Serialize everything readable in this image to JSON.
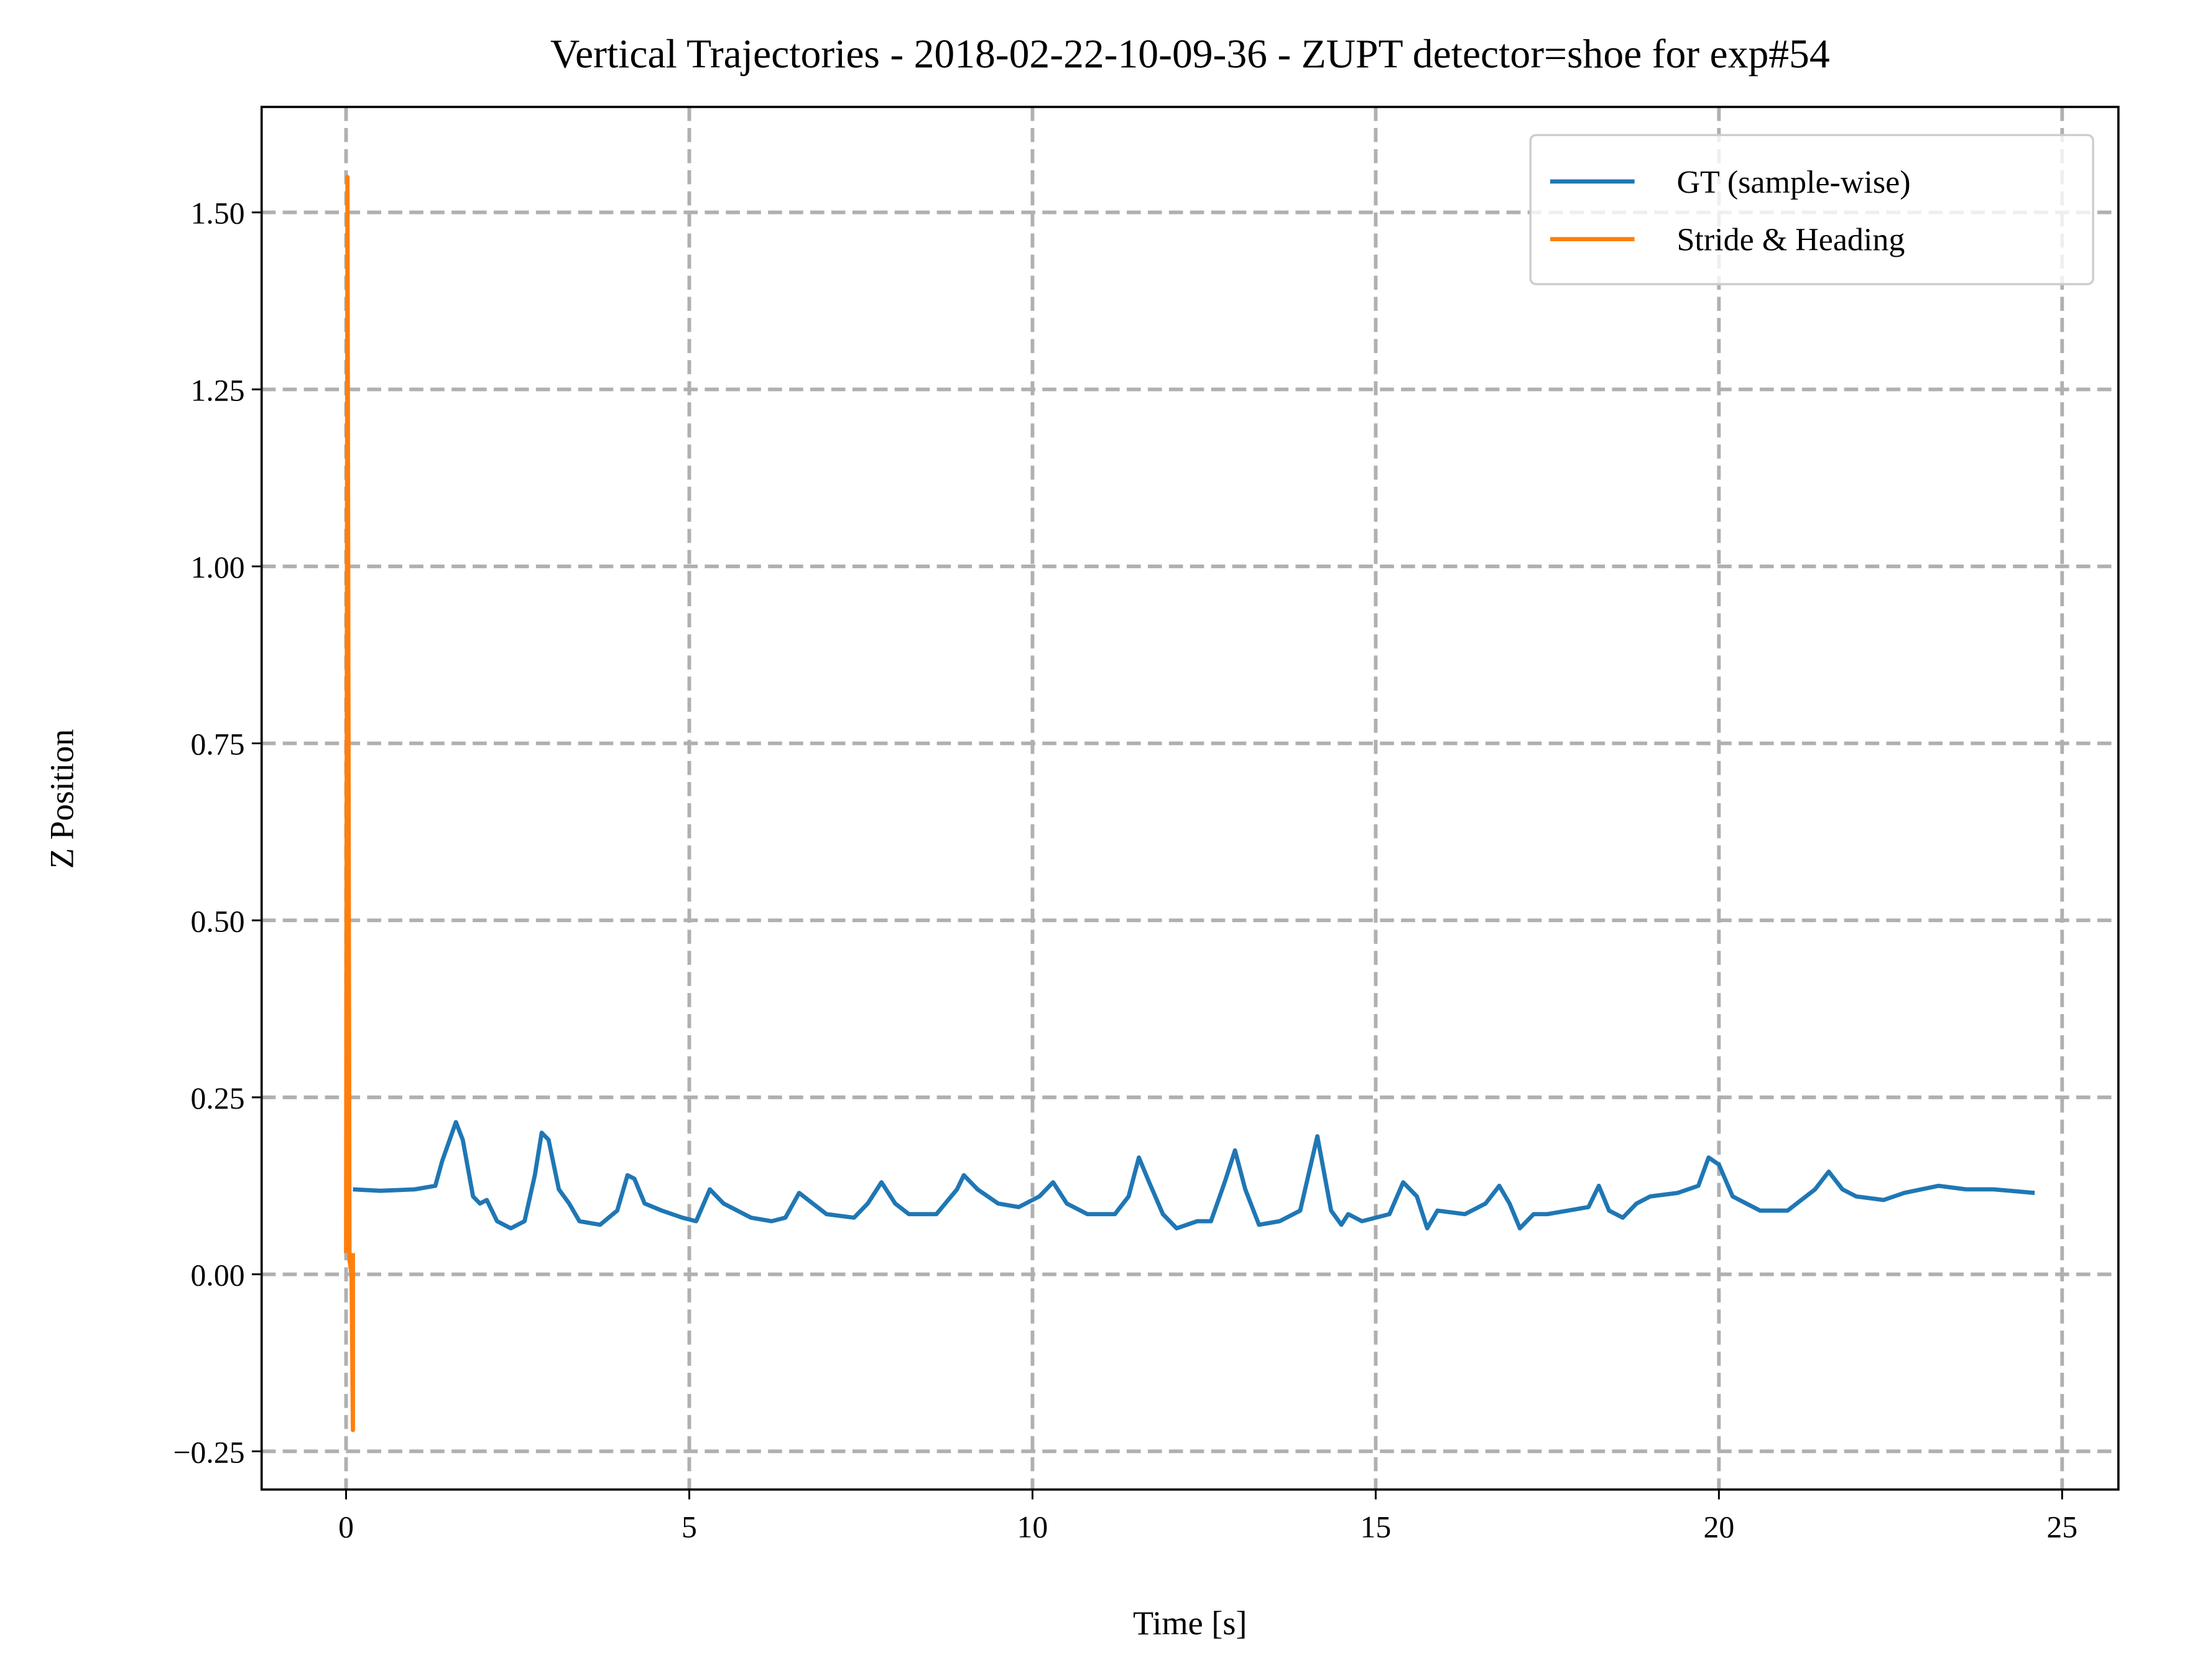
{
  "chart_data": {
    "type": "line",
    "title": "Vertical Trajectories - 2018-02-22-10-09-36 - ZUPT detector=shoe for exp#54",
    "x_label": "Time [s]",
    "y_label": "Z Position",
    "xlim": [
      -1.23,
      25.82
    ],
    "ylim": [
      -0.304,
      1.649
    ],
    "xticks": [
      0,
      5,
      10,
      15,
      20,
      25
    ],
    "yticks": [
      {
        "value": -0.25,
        "label": "−0.25"
      },
      {
        "value": 0,
        "label": "0.00"
      },
      0.25,
      {
        "value": 0.5,
        "label": "0.50"
      },
      0.75,
      {
        "value": 1,
        "label": "1.00"
      },
      1.25,
      {
        "value": 1.5,
        "label": "1.50"
      }
    ],
    "grid": true,
    "legend": "upper right",
    "series": [
      {
        "name": "GT (sample-wise)",
        "color": "#1f77b4",
        "x": [
          0.1,
          0.5,
          1.0,
          1.3,
          1.4,
          1.6,
          1.7,
          1.85,
          1.95,
          2.05,
          2.2,
          2.4,
          2.6,
          2.75,
          2.85,
          2.95,
          3.1,
          3.25,
          3.4,
          3.7,
          3.95,
          4.1,
          4.2,
          4.35,
          4.6,
          4.9,
          5.1,
          5.3,
          5.5,
          5.7,
          5.9,
          6.2,
          6.4,
          6.6,
          6.8,
          7.0,
          7.4,
          7.6,
          7.8,
          8.0,
          8.2,
          8.6,
          8.9,
          9.0,
          9.2,
          9.5,
          9.8,
          10.1,
          10.3,
          10.5,
          10.8,
          11.2,
          11.4,
          11.55,
          11.7,
          11.9,
          12.1,
          12.4,
          12.6,
          12.8,
          12.95,
          13.1,
          13.3,
          13.6,
          13.9,
          14.15,
          14.35,
          14.5,
          14.6,
          14.8,
          15.2,
          15.4,
          15.6,
          15.75,
          15.9,
          16.3,
          16.6,
          16.8,
          16.95,
          17.1,
          17.3,
          17.5,
          17.8,
          18.1,
          18.25,
          18.4,
          18.6,
          18.8,
          19.0,
          19.4,
          19.7,
          19.85,
          20.0,
          20.2,
          20.4,
          20.6,
          21.0,
          21.4,
          21.6,
          21.8,
          22.0,
          22.4,
          22.7,
          23.2,
          23.6,
          24.0,
          24.6
        ],
        "values": [
          0.12,
          0.118,
          0.12,
          0.125,
          0.16,
          0.215,
          0.19,
          0.11,
          0.1,
          0.105,
          0.075,
          0.065,
          0.075,
          0.14,
          0.2,
          0.19,
          0.12,
          0.1,
          0.075,
          0.07,
          0.09,
          0.14,
          0.135,
          0.1,
          0.09,
          0.08,
          0.075,
          0.12,
          0.1,
          0.09,
          0.08,
          0.075,
          0.08,
          0.115,
          0.1,
          0.085,
          0.08,
          0.1,
          0.13,
          0.1,
          0.085,
          0.085,
          0.12,
          0.14,
          0.12,
          0.1,
          0.095,
          0.11,
          0.13,
          0.1,
          0.085,
          0.085,
          0.11,
          0.165,
          0.13,
          0.085,
          0.065,
          0.075,
          0.075,
          0.13,
          0.175,
          0.12,
          0.07,
          0.075,
          0.09,
          0.195,
          0.09,
          0.07,
          0.085,
          0.075,
          0.085,
          0.13,
          0.11,
          0.065,
          0.09,
          0.085,
          0.1,
          0.125,
          0.1,
          0.065,
          0.085,
          0.085,
          0.09,
          0.095,
          0.125,
          0.09,
          0.08,
          0.1,
          0.11,
          0.115,
          0.125,
          0.165,
          0.155,
          0.11,
          0.1,
          0.09,
          0.09,
          0.12,
          0.145,
          0.12,
          0.11,
          0.105,
          0.115,
          0.125,
          0.12,
          0.12,
          0.115
        ]
      },
      {
        "name": "Stride & Heading",
        "color": "#ff7f0e",
        "x": [
          0.0,
          0.02,
          0.05,
          0.08,
          0.1,
          0.1
        ],
        "values": [
          0.03,
          1.55,
          0.02,
          0.0,
          -0.22,
          0.03
        ]
      }
    ]
  }
}
